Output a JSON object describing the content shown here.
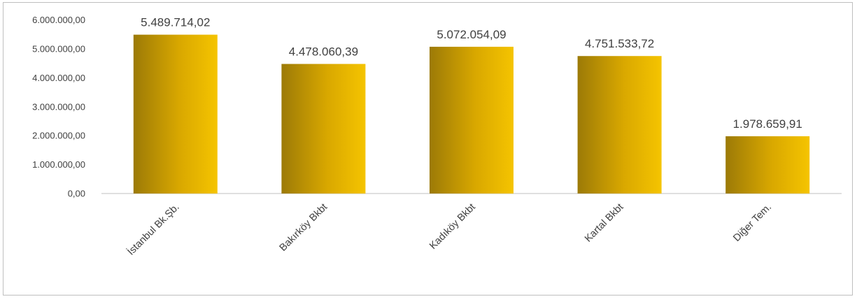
{
  "chart_data": {
    "type": "bar",
    "title": "",
    "xlabel": "",
    "ylabel": "",
    "categories": [
      "İstanbul Bk.Şb.",
      "Bakırköy Bkbt",
      "Kadıköy Bkbt",
      "Kartal Bkbt",
      "Diğer Tem."
    ],
    "values": [
      5489714.02,
      4478060.39,
      5072054.09,
      4751533.72,
      1978659.91
    ],
    "value_labels": [
      "5.489.714,02",
      "4.478.060,39",
      "5.072.054,09",
      "4.751.533,72",
      "1.978.659,91"
    ],
    "ylim": [
      0,
      6000000
    ],
    "yticks": [
      0,
      1000000,
      2000000,
      3000000,
      4000000,
      5000000,
      6000000
    ],
    "ytick_labels": [
      "0,00",
      "1.000.000,00",
      "2.000.000,00",
      "3.000.000,00",
      "4.000.000,00",
      "5.000.000,00",
      "6.000.000,00"
    ],
    "grid": false,
    "legend": "none",
    "colors": {
      "bar_dark": "#9c7a07",
      "bar_mid": "#d9a800",
      "bar_light": "#f5c400",
      "axis": "#bfbfbf",
      "text": "#404040"
    }
  }
}
